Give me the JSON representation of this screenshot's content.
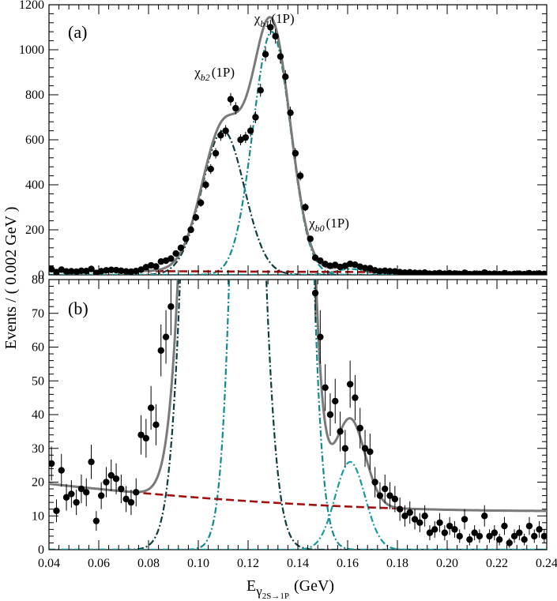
{
  "chart_data": {
    "type": "scatter",
    "ylabel": "Events / ( 0.002 GeV )",
    "xlabel": "E",
    "xlabel_sub": "γ",
    "xlabel_subsub": "2S→1P",
    "xlabel_unit": "(GeV)",
    "xlim": [
      0.04,
      0.24
    ],
    "x_ticks": [
      "0.04",
      "0.06",
      "0.08",
      "0.10",
      "0.12",
      "0.14",
      "0.16",
      "0.18",
      "0.20",
      "0.22",
      "0.24"
    ],
    "panels": [
      {
        "tag": "(a)",
        "ylim": [
          0,
          1200
        ],
        "y_ticks": [
          "0",
          "200",
          "400",
          "600",
          "800",
          "1000",
          "1200"
        ],
        "annotations": [
          {
            "sym": "χ",
            "sub": "b2",
            "tail": "(1P)",
            "x": 0.108,
            "y": 880
          },
          {
            "sym": "χ",
            "sub": "b1",
            "tail": "(1P)",
            "x": 0.132,
            "y": 1120
          },
          {
            "sym": "χ",
            "sub": "b0",
            "tail": "(1P)",
            "x": 0.154,
            "y": 210
          }
        ],
        "data": {
          "x": [
            0.041,
            0.043,
            0.045,
            0.047,
            0.049,
            0.051,
            0.053,
            0.055,
            0.057,
            0.059,
            0.061,
            0.063,
            0.065,
            0.067,
            0.069,
            0.071,
            0.073,
            0.075,
            0.077,
            0.079,
            0.081,
            0.083,
            0.085,
            0.087,
            0.089,
            0.091,
            0.093,
            0.095,
            0.097,
            0.099,
            0.101,
            0.103,
            0.105,
            0.107,
            0.109,
            0.111,
            0.113,
            0.115,
            0.117,
            0.119,
            0.121,
            0.123,
            0.125,
            0.127,
            0.129,
            0.131,
            0.133,
            0.135,
            0.137,
            0.139,
            0.141,
            0.143,
            0.145,
            0.147,
            0.149,
            0.151,
            0.153,
            0.155,
            0.157,
            0.159,
            0.161,
            0.163,
            0.165,
            0.167,
            0.169,
            0.171,
            0.173,
            0.175,
            0.177,
            0.179,
            0.181,
            0.183,
            0.185,
            0.187,
            0.189,
            0.191,
            0.193,
            0.195,
            0.197,
            0.199,
            0.201,
            0.203,
            0.205,
            0.207,
            0.209,
            0.211,
            0.213,
            0.215,
            0.217,
            0.219,
            0.221,
            0.223,
            0.225,
            0.227,
            0.229,
            0.231,
            0.233,
            0.235,
            0.237,
            0.239
          ],
          "y": [
            25,
            12,
            23,
            15,
            16,
            14,
            18,
            17,
            26,
            8,
            16,
            20,
            22,
            21,
            18,
            15,
            14,
            17,
            23,
            34,
            42,
            37,
            59,
            63,
            72,
            95,
            120,
            160,
            200,
            255,
            320,
            400,
            470,
            540,
            620,
            640,
            780,
            740,
            600,
            610,
            640,
            700,
            820,
            980,
            1100,
            1060,
            970,
            880,
            720,
            540,
            440,
            300,
            160,
            76,
            63,
            48,
            40,
            44,
            35,
            40,
            49,
            45,
            36,
            30,
            29,
            20,
            16,
            18,
            16,
            15,
            12,
            10,
            11,
            9,
            8,
            10,
            5,
            6,
            8,
            5,
            7,
            6,
            4,
            9,
            3,
            5,
            4,
            10,
            4,
            5,
            3,
            7,
            2,
            4,
            5,
            3,
            7,
            4,
            6,
            4
          ]
        },
        "err_scale": 1
      },
      {
        "tag": "(b)",
        "ylim": [
          0,
          80
        ],
        "y_ticks": [
          "0",
          "10",
          "20",
          "30",
          "40",
          "50",
          "60",
          "70",
          "80"
        ],
        "data": {
          "x": [
            0.041,
            0.043,
            0.045,
            0.047,
            0.049,
            0.051,
            0.053,
            0.055,
            0.057,
            0.059,
            0.061,
            0.063,
            0.065,
            0.067,
            0.069,
            0.071,
            0.073,
            0.075,
            0.077,
            0.079,
            0.081,
            0.083,
            0.085,
            0.087,
            0.089,
            0.147,
            0.149,
            0.151,
            0.153,
            0.155,
            0.157,
            0.159,
            0.161,
            0.163,
            0.165,
            0.167,
            0.169,
            0.171,
            0.173,
            0.175,
            0.177,
            0.179,
            0.181,
            0.183,
            0.185,
            0.187,
            0.189,
            0.191,
            0.193,
            0.195,
            0.197,
            0.199,
            0.201,
            0.203,
            0.205,
            0.207,
            0.209,
            0.211,
            0.213,
            0.215,
            0.217,
            0.219,
            0.221,
            0.223,
            0.225,
            0.227,
            0.229,
            0.231,
            0.233,
            0.235,
            0.237,
            0.239
          ],
          "y": [
            25.5,
            11.5,
            23.5,
            15.5,
            16.5,
            14,
            18,
            17,
            26,
            8.5,
            16,
            20,
            22,
            21,
            18,
            15,
            14,
            17,
            34,
            33,
            42,
            37,
            59,
            63,
            72,
            76,
            63,
            48,
            40,
            44,
            35,
            30,
            49,
            45,
            36,
            30,
            29,
            20,
            16,
            18,
            16,
            15,
            12,
            10,
            11,
            9,
            8,
            10,
            5,
            6,
            8,
            5,
            7,
            6,
            4,
            9,
            3,
            5,
            4,
            10,
            4,
            5,
            3,
            7,
            2,
            4,
            5,
            3,
            7,
            4,
            6,
            4
          ]
        }
      }
    ],
    "model": {
      "b2": {
        "amp": 640,
        "mu": 0.11,
        "sigma": 0.0085
      },
      "b1": {
        "amp": 1080,
        "mu": 0.1295,
        "sigma": 0.0075
      },
      "b0": {
        "amp": 26,
        "mu": 0.161,
        "sigma": 0.006
      },
      "bkg": {
        "a": 19.5,
        "b": -80,
        "c": 200
      },
      "colors": {
        "total": "#7a7a7a",
        "b2": "#0e3d3d",
        "b1": "#158a8a",
        "b0": "#1a9a9a",
        "bkg": "#a01010",
        "points": "#000000"
      }
    }
  }
}
